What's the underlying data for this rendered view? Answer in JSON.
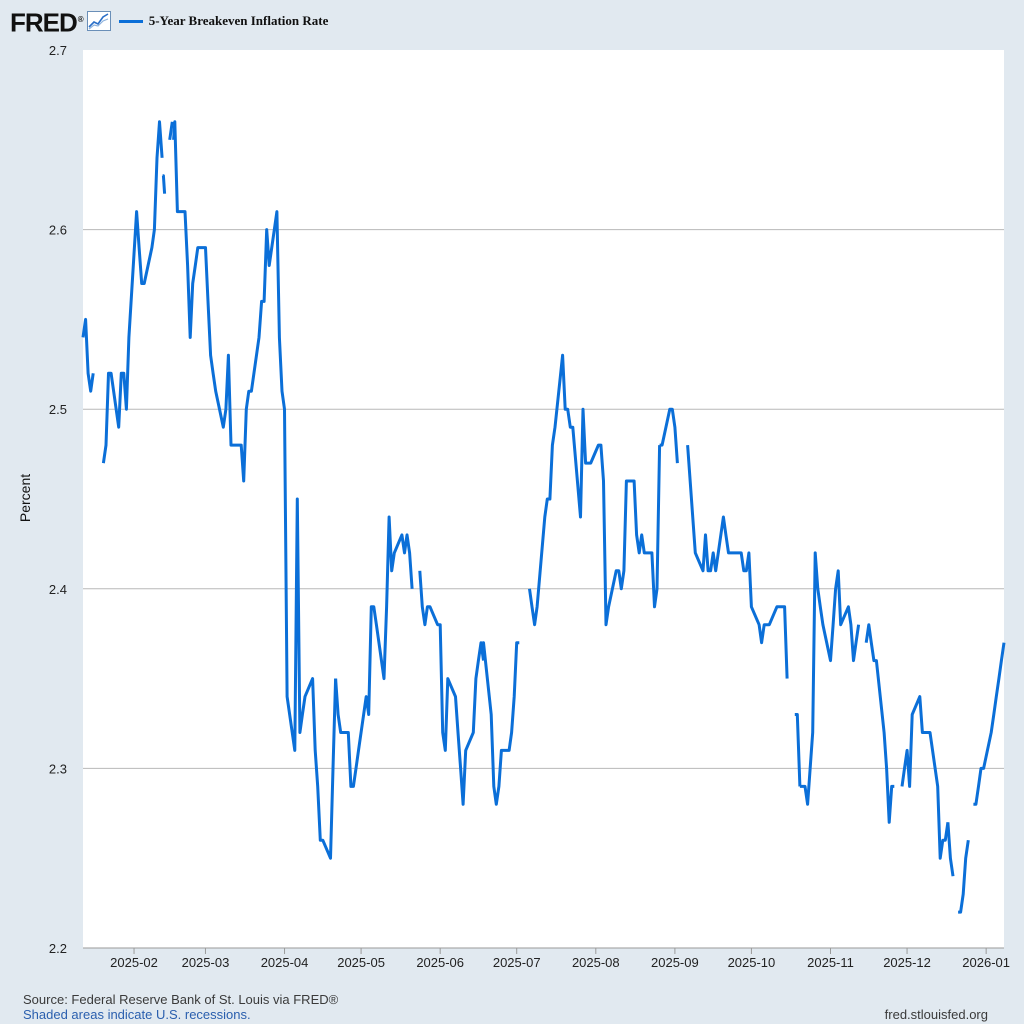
{
  "header": {
    "logo_text": "FRED",
    "logo_reg": "®",
    "legend_label": "5-Year Breakeven Inflation Rate",
    "series_color": "#0b6fd8"
  },
  "footer": {
    "source": "Source: Federal Reserve Bank of St. Louis via FRED®",
    "note": "Shaded areas indicate U.S. recessions.",
    "url": "fred.stlouisfed.org"
  },
  "chart_data": {
    "type": "line",
    "title": "5-Year Breakeven Inflation Rate",
    "ylabel": "Percent",
    "xlabel": "",
    "ylim": [
      2.2,
      2.7
    ],
    "yticks": [
      2.2,
      2.3,
      2.4,
      2.5,
      2.6,
      2.7
    ],
    "ytick_labels": [
      "2.2",
      "2.3",
      "2.4",
      "2.5",
      "2.6",
      "2.7"
    ],
    "xlim": [
      12,
      373
    ],
    "xticks": [
      {
        "day": 32,
        "label": "2025-02"
      },
      {
        "day": 60,
        "label": "2025-03"
      },
      {
        "day": 91,
        "label": "2025-04"
      },
      {
        "day": 121,
        "label": "2025-05"
      },
      {
        "day": 152,
        "label": "2025-06"
      },
      {
        "day": 182,
        "label": "2025-07"
      },
      {
        "day": 213,
        "label": "2025-08"
      },
      {
        "day": 244,
        "label": "2025-09"
      },
      {
        "day": 274,
        "label": "2025-10"
      },
      {
        "day": 305,
        "label": "2025-11"
      },
      {
        "day": 335,
        "label": "2025-12"
      },
      {
        "day": 366,
        "label": "2026-01"
      }
    ],
    "x_units": "day of year 2025 (day 1 = 2025-01-01)",
    "segments": [
      {
        "x": [
          12,
          13,
          14,
          15,
          16
        ],
        "y": [
          2.54,
          2.55,
          2.52,
          2.51,
          2.52
        ]
      },
      {
        "x": [
          20,
          21,
          22,
          23,
          26,
          27,
          28,
          29,
          30,
          33,
          34,
          35,
          36,
          39,
          40,
          41,
          42,
          43
        ],
        "y": [
          2.47,
          2.48,
          2.52,
          2.52,
          2.49,
          2.52,
          2.52,
          2.5,
          2.54,
          2.61,
          2.59,
          2.57,
          2.57,
          2.59,
          2.6,
          2.64,
          2.66,
          2.64
        ]
      },
      {
        "x": [
          43.2,
          43.5,
          44
        ],
        "y": [
          2.63,
          2.63,
          2.62
        ]
      },
      {
        "x": [
          46,
          47
        ],
        "y": [
          2.65,
          2.66
        ]
      },
      {
        "x": [
          47.5,
          48,
          49,
          50,
          52,
          53,
          54,
          55,
          56,
          57,
          60,
          61,
          62,
          63,
          64,
          67,
          68,
          69,
          70,
          71,
          74,
          75,
          76,
          77,
          78,
          81,
          82,
          83,
          84,
          85,
          88,
          89,
          90,
          91,
          92,
          95,
          96,
          97,
          98,
          99,
          102,
          103,
          104,
          105,
          106,
          109,
          110,
          111
        ],
        "y": [
          2.65,
          2.66,
          2.61,
          2.61,
          2.61,
          2.58,
          2.54,
          2.57,
          2.58,
          2.59,
          2.59,
          2.56,
          2.53,
          2.52,
          2.51,
          2.49,
          2.5,
          2.53,
          2.48,
          2.48,
          2.48,
          2.46,
          2.5,
          2.51,
          2.51,
          2.54,
          2.56,
          2.56,
          2.6,
          2.58,
          2.61,
          2.54,
          2.51,
          2.5,
          2.34,
          2.31,
          2.45,
          2.32,
          2.33,
          2.34,
          2.35,
          2.31,
          2.29,
          2.26,
          2.26,
          2.25,
          2.3,
          2.35
        ]
      },
      {
        "x": [
          111,
          112,
          113,
          116,
          117,
          118,
          119,
          120,
          123,
          124,
          125,
          126,
          127,
          130,
          131,
          132,
          133,
          134,
          137,
          138,
          139,
          140,
          141
        ],
        "y": [
          2.35,
          2.33,
          2.32,
          2.32,
          2.29,
          2.29,
          2.3,
          2.31,
          2.34,
          2.33,
          2.39,
          2.39,
          2.38,
          2.35,
          2.39,
          2.44,
          2.41,
          2.42,
          2.43,
          2.42,
          2.43,
          2.42,
          2.4
        ]
      },
      {
        "x": [
          144,
          145,
          146,
          147,
          148,
          151,
          152,
          153,
          154,
          155,
          158,
          159,
          160,
          161,
          162,
          165,
          166,
          167,
          168,
          169
        ],
        "y": [
          2.41,
          2.39,
          2.38,
          2.39,
          2.39,
          2.38,
          2.38,
          2.32,
          2.31,
          2.35,
          2.34,
          2.32,
          2.3,
          2.28,
          2.31,
          2.32,
          2.35,
          2.36,
          2.37,
          2.36
        ]
      },
      {
        "x": [
          168.5,
          169,
          172,
          173,
          174,
          175,
          176,
          179,
          180,
          181,
          182,
          183
        ],
        "y": [
          2.37,
          2.37,
          2.33,
          2.29,
          2.28,
          2.29,
          2.31,
          2.31,
          2.32,
          2.34,
          2.37,
          2.37
        ]
      },
      {
        "x": [
          187,
          188,
          189,
          190,
          193,
          194,
          195,
          196,
          197,
          200,
          201,
          202,
          203,
          204,
          207,
          208,
          209,
          210,
          211,
          214,
          215,
          216,
          217,
          218,
          221,
          222,
          223,
          224,
          225,
          228,
          229,
          230,
          231,
          232,
          235,
          236,
          237,
          238
        ],
        "y": [
          2.4,
          2.39,
          2.38,
          2.39,
          2.44,
          2.45,
          2.45,
          2.48,
          2.49,
          2.53,
          2.5,
          2.5,
          2.49,
          2.49,
          2.44,
          2.5,
          2.47,
          2.47,
          2.47,
          2.48,
          2.48,
          2.46,
          2.38,
          2.39,
          2.41,
          2.41,
          2.4,
          2.41,
          2.46,
          2.46,
          2.43,
          2.42,
          2.43,
          2.42,
          2.42,
          2.39,
          2.4,
          2.48
        ]
      },
      {
        "x": [
          238,
          239,
          242,
          243,
          244,
          245
        ],
        "y": [
          2.48,
          2.48,
          2.5,
          2.5,
          2.49,
          2.47
        ]
      },
      {
        "x": [
          249,
          252,
          255,
          256,
          257,
          258,
          259,
          260,
          263,
          264,
          265,
          266,
          267,
          270,
          271,
          272,
          273,
          274,
          277,
          278,
          279,
          280,
          281,
          284,
          285,
          286,
          287,
          288
        ],
        "y": [
          2.48,
          2.42,
          2.41,
          2.43,
          2.41,
          2.41,
          2.42,
          2.41,
          2.44,
          2.43,
          2.42,
          2.42,
          2.42,
          2.42,
          2.41,
          2.41,
          2.42,
          2.39,
          2.38,
          2.37,
          2.38,
          2.38,
          2.38,
          2.39,
          2.39,
          2.39,
          2.39,
          2.35
        ]
      },
      {
        "x": [
          291,
          292,
          293
        ],
        "y": [
          2.33,
          2.33,
          2.29
        ]
      },
      {
        "x": [
          293,
          294,
          295,
          296,
          298,
          299,
          300,
          301,
          302,
          305,
          306,
          307,
          308,
          309,
          312,
          313,
          314,
          315,
          316
        ],
        "y": [
          2.29,
          2.29,
          2.29,
          2.28,
          2.32,
          2.42,
          2.4,
          2.39,
          2.38,
          2.36,
          2.38,
          2.4,
          2.41,
          2.38,
          2.39,
          2.38,
          2.36,
          2.37,
          2.38
        ]
      },
      {
        "x": [
          319,
          320,
          321,
          322,
          323,
          326,
          327,
          328,
          329,
          330
        ],
        "y": [
          2.37,
          2.38,
          2.37,
          2.36,
          2.36,
          2.32,
          2.3,
          2.27,
          2.29,
          2.29
        ]
      },
      {
        "x": [
          333,
          334,
          335,
          336,
          337,
          340,
          341,
          342,
          343,
          344,
          347,
          348,
          349,
          350,
          351
        ],
        "y": [
          2.29,
          2.3,
          2.31,
          2.29,
          2.33,
          2.34,
          2.32,
          2.32,
          2.32,
          2.32,
          2.29,
          2.25,
          2.26,
          2.26,
          2.27
        ]
      },
      {
        "x": [
          351,
          352,
          353
        ],
        "y": [
          2.27,
          2.25,
          2.24
        ]
      },
      {
        "x": [
          355,
          356,
          357,
          358,
          359
        ],
        "y": [
          2.22,
          2.22,
          2.23,
          2.25,
          2.26
        ]
      },
      {
        "x": [
          361,
          362,
          363,
          364,
          365,
          368,
          369,
          370,
          371,
          372,
          373
        ],
        "y": [
          2.28,
          2.28,
          2.29,
          2.3,
          2.3,
          2.32,
          2.33,
          2.34,
          2.35,
          2.36,
          2.37
        ]
      }
    ]
  }
}
